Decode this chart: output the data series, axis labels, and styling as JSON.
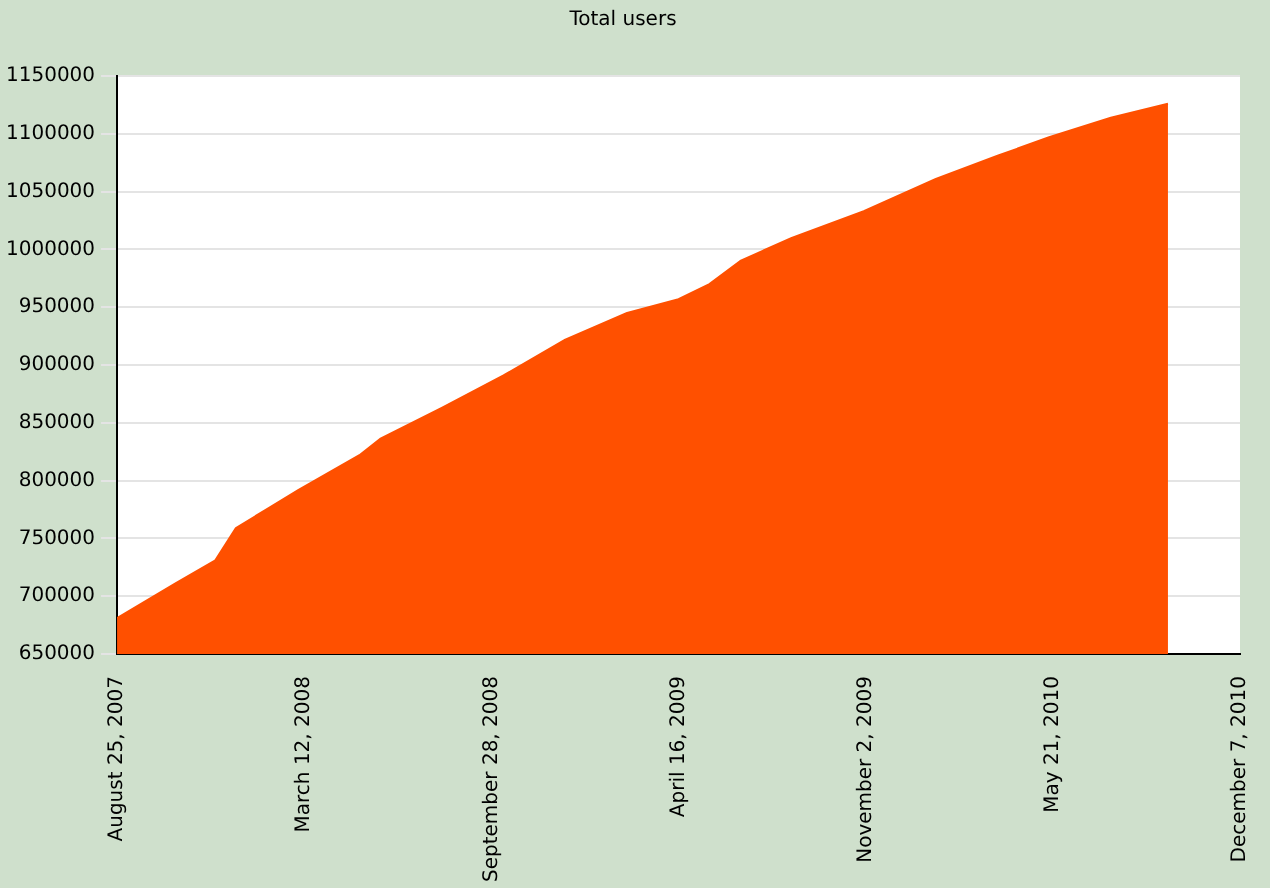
{
  "chart_data": {
    "type": "area",
    "title": "Total users",
    "x": [
      "2007-08-25",
      "2007-10-26",
      "2007-12-08",
      "2007-12-30",
      "2008-03-06",
      "2008-05-10",
      "2008-06-01",
      "2008-08-06",
      "2008-10-11",
      "2008-12-16",
      "2009-02-20",
      "2009-04-16",
      "2009-05-19",
      "2009-06-21",
      "2009-08-15",
      "2009-10-31",
      "2010-01-16",
      "2010-03-23",
      "2010-05-17",
      "2010-07-22",
      "2010-09-21"
    ],
    "series": [
      {
        "color": "#ff5000",
        "values": [
          681000,
          711000,
          731000,
          759000,
          792000,
          822000,
          836000,
          863000,
          891000,
          922000,
          945000,
          957000,
          970000,
          990000,
          1010000,
          1033000,
          1061000,
          1081000,
          1097000,
          1114000,
          1126000
        ]
      }
    ],
    "xlim": [
      "2007-08-25",
      "2010-12-07"
    ],
    "xticks": [
      {
        "value": "2007-08-25",
        "label": "August 25, 2007"
      },
      {
        "value": "2008-03-12",
        "label": "March 12, 2008"
      },
      {
        "value": "2008-09-28",
        "label": "September 28, 2008"
      },
      {
        "value": "2009-04-16",
        "label": "April 16, 2009"
      },
      {
        "value": "2009-11-02",
        "label": "November 2, 2009"
      },
      {
        "value": "2010-05-21",
        "label": "May 21, 2010"
      },
      {
        "value": "2010-12-07",
        "label": "December 7, 2010"
      }
    ],
    "ylim": [
      650000,
      1150000
    ],
    "yticks": [
      650000,
      700000,
      750000,
      800000,
      850000,
      900000,
      950000,
      1000000,
      1050000,
      1100000,
      1150000
    ],
    "grid": "y",
    "legend": false,
    "marker": "none"
  }
}
